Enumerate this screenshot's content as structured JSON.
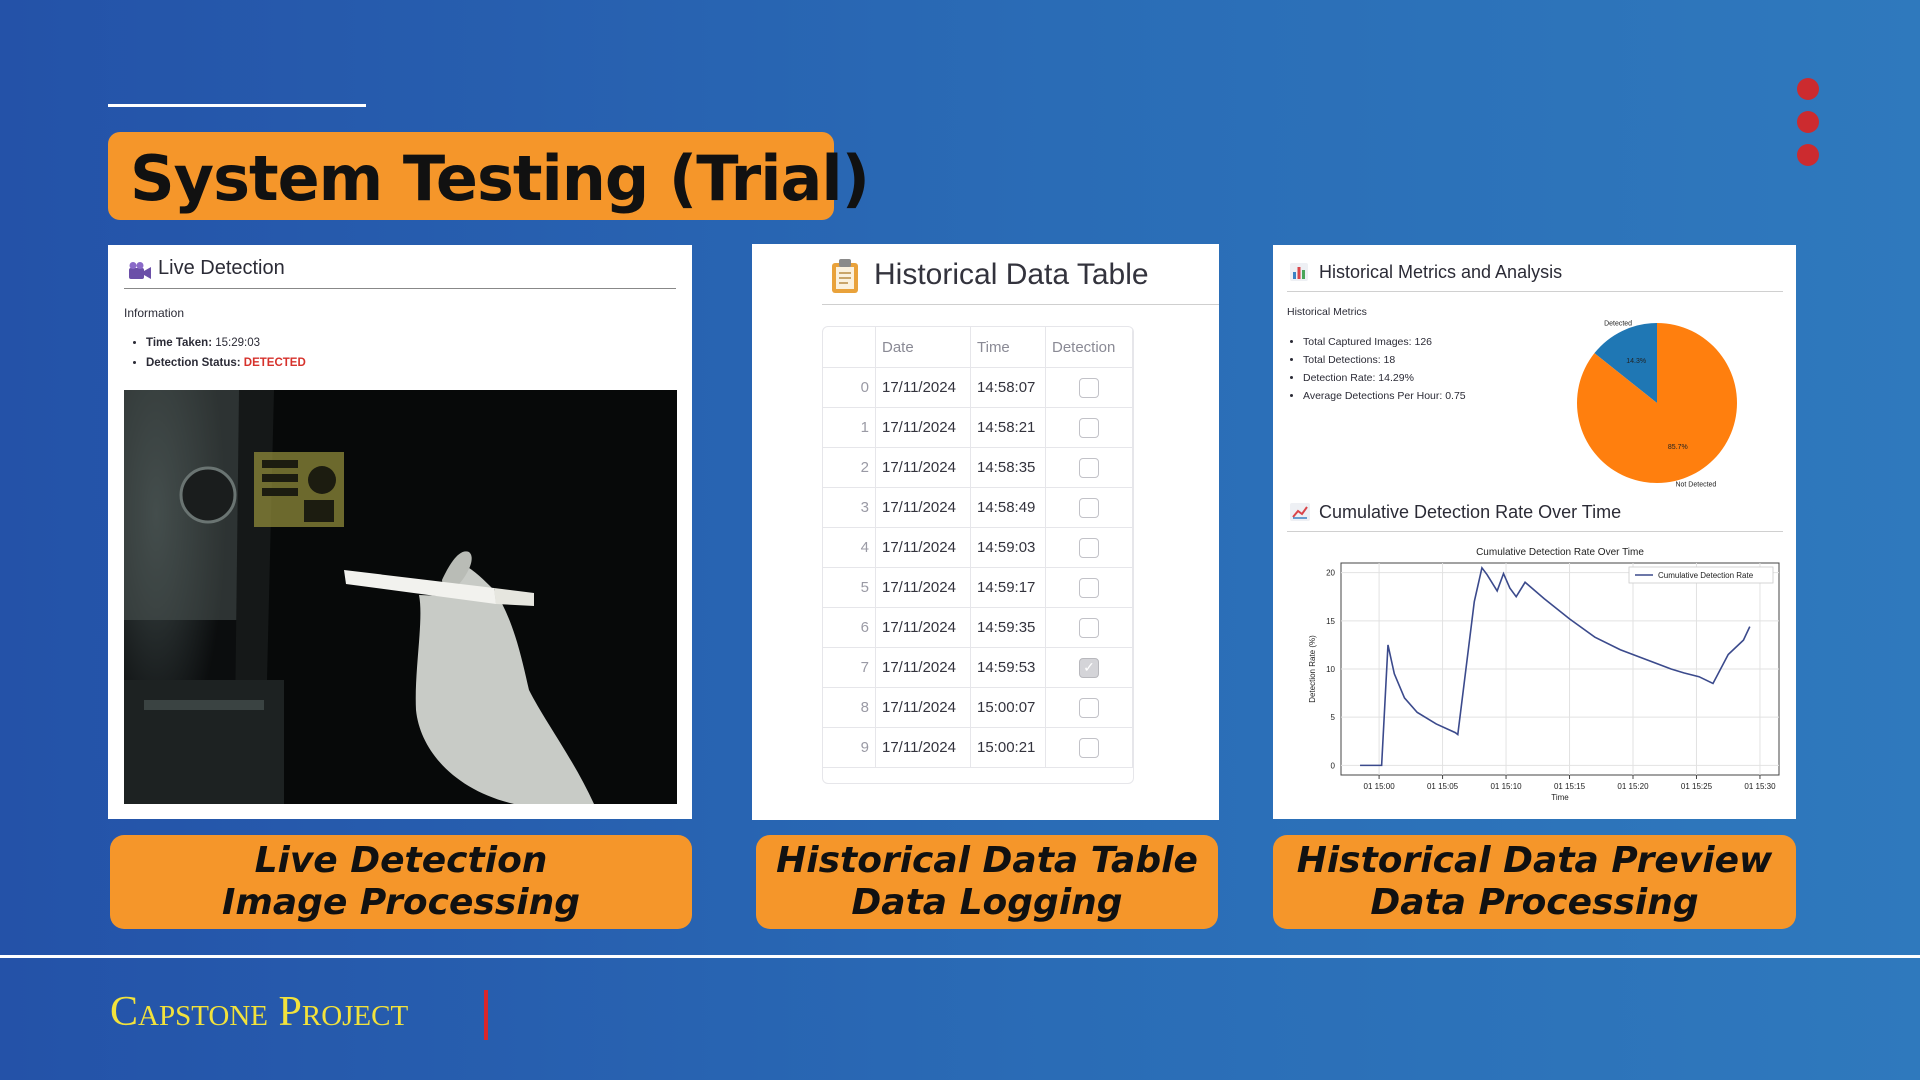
{
  "slide": {
    "title": "System Testing (Trial)",
    "footer": "Capstone Project"
  },
  "captions": [
    {
      "line1": "Live Detection",
      "line2": "Image Processing"
    },
    {
      "line1": "Historical Data Table",
      "line2": "Data Logging"
    },
    {
      "line1": "Historical Data Preview",
      "line2": "Data Processing"
    }
  ],
  "live_detection": {
    "title": "Live Detection",
    "icon": "camera-icon",
    "section_label": "Information",
    "time_taken_label": "Time Taken:",
    "time_taken_value": "15:29:03",
    "status_label": "Detection Status:",
    "status_value": "DETECTED",
    "status_color": "#d6322c"
  },
  "historical_table": {
    "title": "Historical Data Table",
    "icon": "clipboard-icon",
    "columns": [
      "",
      "Date",
      "Time",
      "Detection"
    ],
    "rows": [
      {
        "index": "0",
        "date": "17/11/2024",
        "time": "14:58:07",
        "detection": false
      },
      {
        "index": "1",
        "date": "17/11/2024",
        "time": "14:58:21",
        "detection": false
      },
      {
        "index": "2",
        "date": "17/11/2024",
        "time": "14:58:35",
        "detection": false
      },
      {
        "index": "3",
        "date": "17/11/2024",
        "time": "14:58:49",
        "detection": false
      },
      {
        "index": "4",
        "date": "17/11/2024",
        "time": "14:59:03",
        "detection": false
      },
      {
        "index": "5",
        "date": "17/11/2024",
        "time": "14:59:17",
        "detection": false
      },
      {
        "index": "6",
        "date": "17/11/2024",
        "time": "14:59:35",
        "detection": false
      },
      {
        "index": "7",
        "date": "17/11/2024",
        "time": "14:59:53",
        "detection": true
      },
      {
        "index": "8",
        "date": "17/11/2024",
        "time": "15:00:07",
        "detection": false
      },
      {
        "index": "9",
        "date": "17/11/2024",
        "time": "15:00:21",
        "detection": false
      }
    ]
  },
  "metrics": {
    "title": "Historical Metrics and Analysis",
    "icon": "bar-chart-icon",
    "section_label": "Historical Metrics",
    "items": [
      "Total Captured Images: 126",
      "Total Detections: 18",
      "Detection Rate: 14.29%",
      "Average Detections Per Hour: 0.75"
    ],
    "cumulative_title": "Cumulative Detection Rate Over Time",
    "cumulative_icon": "line-chart-icon"
  },
  "chart_data": [
    {
      "type": "pie",
      "labels": [
        "Detected",
        "Not Detected"
      ],
      "values": [
        14.3,
        85.7
      ],
      "value_labels": [
        "14.3%",
        "85.7%"
      ],
      "colors": [
        "#1f77b4",
        "#ff7f0e"
      ]
    },
    {
      "type": "line",
      "title": "Cumulative Detection Rate Over Time",
      "xlabel": "Time",
      "ylabel": "Detection Rate (%)",
      "x_ticks": [
        "01 15:00",
        "01 15:05",
        "01 15:10",
        "01 15:15",
        "01 15:20",
        "01 15:25",
        "01 15:30"
      ],
      "y_ticks": [
        0,
        5,
        10,
        15,
        20
      ],
      "xlim_minutes": [
        -3,
        31.5
      ],
      "ylim": [
        -1,
        21
      ],
      "grid": true,
      "legend_position": "top-right",
      "color": "#3b4a8c",
      "series": [
        {
          "name": "Cumulative Detection Rate",
          "x_minutes": [
            -1.5,
            0,
            0.2,
            0.7,
            1.2,
            2,
            3,
            4.5,
            6,
            6.2,
            7.5,
            8.1,
            8.5,
            9.3,
            9.8,
            10.3,
            10.8,
            11.5,
            13,
            15,
            17,
            19,
            21,
            23,
            24,
            25.2,
            26.3,
            27.5,
            28.7,
            29.2
          ],
          "y": [
            0,
            0,
            0,
            12.5,
            9.5,
            7.0,
            5.5,
            4.3,
            3.4,
            3.2,
            17.0,
            20.5,
            19.8,
            18.1,
            19.9,
            18.4,
            17.5,
            19.0,
            17.3,
            15.2,
            13.3,
            12.0,
            11.0,
            10.0,
            9.6,
            9.2,
            8.5,
            11.5,
            13.0,
            14.4
          ]
        }
      ]
    }
  ]
}
